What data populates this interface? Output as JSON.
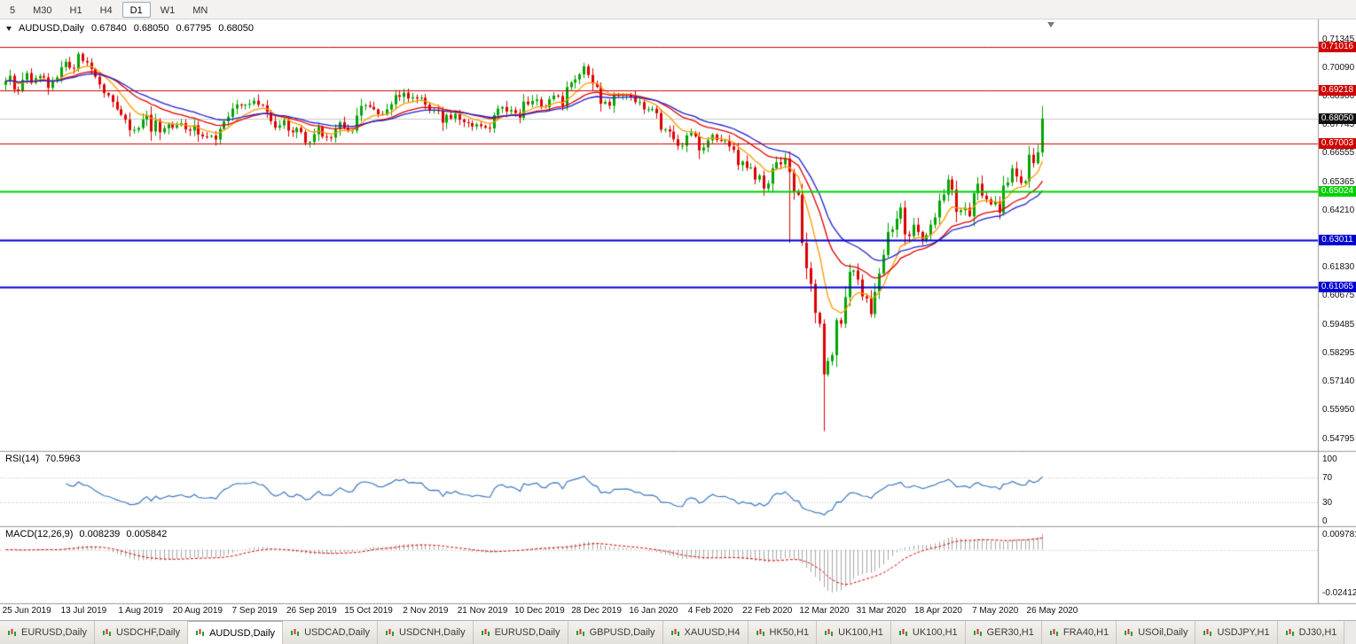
{
  "toolbar": {
    "timeframes": [
      {
        "label": "5",
        "active": false
      },
      {
        "label": "M30",
        "active": false
      },
      {
        "label": "H1",
        "active": false
      },
      {
        "label": "H4",
        "active": false
      },
      {
        "label": "D1",
        "active": true
      },
      {
        "label": "W1",
        "active": false
      },
      {
        "label": "MN",
        "active": false
      }
    ]
  },
  "chart": {
    "title": "AUDUSD,Daily",
    "ohlc": {
      "open": "0.67840",
      "high": "0.68050",
      "low": "0.67795",
      "close": "0.68050"
    },
    "current_price_label": "0.68050",
    "price_ticks": [
      "0.71345",
      "0.70090",
      "0.68900",
      "0.67745",
      "0.66555",
      "0.65365",
      "0.64210",
      "0.63020",
      "0.61830",
      "0.60675",
      "0.59485",
      "0.58295",
      "0.57140",
      "0.55950",
      "0.54795"
    ],
    "hlines": [
      {
        "label": "0.71016",
        "price": 0.71016,
        "color": "#D00000",
        "width": 1
      },
      {
        "label": "0.69218",
        "price": 0.69218,
        "color": "#D00000",
        "width": 1
      },
      {
        "label": "0.67003",
        "price": 0.67003,
        "color": "#D00000",
        "width": 1
      },
      {
        "label": "0.65024",
        "price": 0.65024,
        "color": "#00D000",
        "width": 2
      },
      {
        "label": "0.63011",
        "price": 0.63011,
        "color": "#0000D0",
        "width": 2
      },
      {
        "label": "0.61065",
        "price": 0.61065,
        "color": "#0000D0",
        "width": 2
      }
    ]
  },
  "rsi": {
    "name": "RSI(14)",
    "value": "70.5963",
    "ticks": [
      "100",
      "70",
      "30",
      "0"
    ],
    "levels": [
      70,
      30
    ]
  },
  "macd": {
    "name": "MACD(12,26,9)",
    "main_value": "0.008239",
    "signal_value": "0.005842",
    "ticks": [
      "0.009781",
      "-0.02412"
    ]
  },
  "chart_data": {
    "type": "candlestick",
    "symbol": "AUDUSD",
    "period": "Daily",
    "y_axis_range": [
      0.54795,
      0.71345
    ],
    "x_labels": [
      "25 Jun 2019",
      "13 Jul 2019",
      "1 Aug 2019",
      "20 Aug 2019",
      "7 Sep 2019",
      "26 Sep 2019",
      "15 Oct 2019",
      "2 Nov 2019",
      "21 Nov 2019",
      "10 Dec 2019",
      "28 Dec 2019",
      "16 Jan 2020",
      "4 Feb 2020",
      "22 Feb 2020",
      "12 Mar 2020",
      "31 Mar 2020",
      "18 Apr 2020",
      "7 May 2020",
      "26 May 2020"
    ],
    "first_open": 0.6945,
    "closes": [
      0.696,
      0.6982,
      0.6925,
      0.6921,
      0.6965,
      0.6993,
      0.6953,
      0.6972,
      0.6981,
      0.6975,
      0.6932,
      0.696,
      0.6975,
      0.7018,
      0.704,
      0.7015,
      0.7012,
      0.7073,
      0.7043,
      0.7037,
      0.701,
      0.6978,
      0.6946,
      0.691,
      0.6901,
      0.6874,
      0.6843,
      0.682,
      0.68,
      0.6757,
      0.6758,
      0.6766,
      0.68,
      0.682,
      0.6751,
      0.6797,
      0.6748,
      0.6765,
      0.6781,
      0.6767,
      0.6777,
      0.6786,
      0.676,
      0.6755,
      0.6777,
      0.6739,
      0.6731,
      0.673,
      0.6734,
      0.6718,
      0.6762,
      0.6793,
      0.6812,
      0.6846,
      0.6863,
      0.6861,
      0.6862,
      0.6866,
      0.6879,
      0.6862,
      0.686,
      0.6832,
      0.6794,
      0.6767,
      0.6777,
      0.6798,
      0.6755,
      0.6748,
      0.6766,
      0.6749,
      0.6704,
      0.6708,
      0.674,
      0.677,
      0.673,
      0.6728,
      0.6726,
      0.676,
      0.679,
      0.6767,
      0.6752,
      0.6755,
      0.6817,
      0.6857,
      0.686,
      0.6853,
      0.6843,
      0.6823,
      0.6821,
      0.6843,
      0.6864,
      0.6902,
      0.6895,
      0.6912,
      0.6888,
      0.6893,
      0.6888,
      0.6891,
      0.6862,
      0.6838,
      0.684,
      0.6838,
      0.6788,
      0.682,
      0.6805,
      0.6824,
      0.68,
      0.679,
      0.6786,
      0.6772,
      0.6781,
      0.6774,
      0.6767,
      0.6764,
      0.6819,
      0.6846,
      0.6853,
      0.6834,
      0.684,
      0.6828,
      0.6808,
      0.6875,
      0.6864,
      0.6878,
      0.6884,
      0.6855,
      0.6852,
      0.6885,
      0.69,
      0.6898,
      0.6857,
      0.6935,
      0.6954,
      0.6967,
      0.6988,
      0.7021,
      0.6985,
      0.695,
      0.6936,
      0.6866,
      0.6874,
      0.6858,
      0.6902,
      0.69,
      0.6904,
      0.6905,
      0.6896,
      0.6873,
      0.6873,
      0.6843,
      0.6843,
      0.6845,
      0.6827,
      0.6759,
      0.676,
      0.6751,
      0.6719,
      0.6692,
      0.6692,
      0.6735,
      0.6746,
      0.6731,
      0.6673,
      0.6685,
      0.6715,
      0.6738,
      0.6716,
      0.6712,
      0.6714,
      0.6689,
      0.6675,
      0.6612,
      0.6627,
      0.66,
      0.6602,
      0.6552,
      0.6569,
      0.6515,
      0.6535,
      0.6598,
      0.6624,
      0.6615,
      0.6639,
      0.6583,
      0.65,
      0.6489,
      0.629,
      0.6185,
      0.612,
      0.6,
      0.5955,
      0.5745,
      0.58,
      0.5825,
      0.597,
      0.5955,
      0.6065,
      0.617,
      0.6175,
      0.6138,
      0.6068,
      0.606,
      0.5995,
      0.6087,
      0.6163,
      0.624,
      0.6335,
      0.6345,
      0.639,
      0.6436,
      0.6325,
      0.6318,
      0.6365,
      0.6335,
      0.63,
      0.6322,
      0.6365,
      0.6395,
      0.6465,
      0.649,
      0.6552,
      0.651,
      0.6418,
      0.6425,
      0.6435,
      0.64,
      0.6495,
      0.6535,
      0.6485,
      0.647,
      0.6449,
      0.646,
      0.6415,
      0.6527,
      0.654,
      0.6598,
      0.6565,
      0.6538,
      0.6545,
      0.6655,
      0.662,
      0.6665,
      0.6805
    ],
    "wick_extremes": [
      {
        "index": 183,
        "low": 0.629
      },
      {
        "index": 191,
        "low": 0.551
      }
    ],
    "moving_averages": [
      {
        "period": 9,
        "color": "#FF9900"
      },
      {
        "period": 21,
        "color": "#E00000"
      },
      {
        "period": 30,
        "color": "#2020CC"
      }
    ],
    "colors": {
      "up": "#00A400",
      "down": "#DC0000",
      "rsi": "#3C78C0",
      "macd_hist": "#A6A6A6",
      "macd_signal": "#E00000",
      "current_price_line": "#C8C8C8"
    }
  },
  "tabs": [
    {
      "label": "EURUSD,Daily",
      "active": false
    },
    {
      "label": "USDCHF,Daily",
      "active": false
    },
    {
      "label": "AUDUSD,Daily",
      "active": true
    },
    {
      "label": "USDCAD,Daily",
      "active": false
    },
    {
      "label": "USDCNH,Daily",
      "active": false
    },
    {
      "label": "EURUSD,Daily",
      "active": false
    },
    {
      "label": "GBPUSD,Daily",
      "active": false
    },
    {
      "label": "XAUUSD,H4",
      "active": false
    },
    {
      "label": "HK50,H1",
      "active": false
    },
    {
      "label": "UK100,H1",
      "active": false
    },
    {
      "label": "UK100,H1",
      "active": false
    },
    {
      "label": "GER30,H1",
      "active": false
    },
    {
      "label": "FRA40,H1",
      "active": false
    },
    {
      "label": "USOil,Daily",
      "active": false
    },
    {
      "label": "USDJPY,H1",
      "active": false
    },
    {
      "label": "DJ30,H1",
      "active": false
    }
  ]
}
